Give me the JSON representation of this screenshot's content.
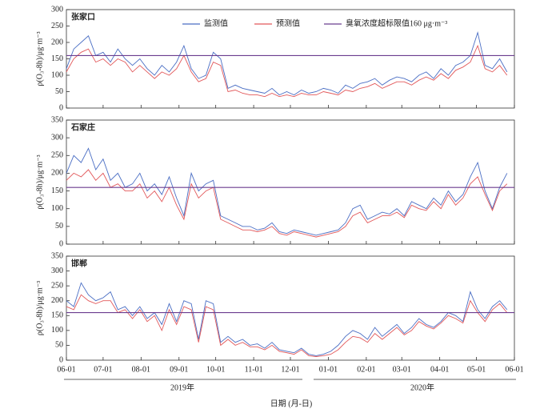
{
  "x_label": "日期 (月-日)",
  "year_labels": [
    "2019年",
    "2020年"
  ],
  "chart_data": [
    {
      "type": "line",
      "title": "张家口",
      "y_label": "ρ(O₃-8h)/μg·m⁻³",
      "ylim": [
        0,
        300
      ],
      "yticks": [
        0,
        50,
        100,
        150,
        200,
        250,
        300
      ],
      "threshold": 160,
      "threshold_name": "臭氧浓度超标限值160 μg·m⁻³",
      "threshold_color": "#6b3d8f",
      "xlim": [
        "2019-06-01",
        "2020-06-01"
      ],
      "x": [
        "2019-06-01",
        "2019-06-07",
        "2019-06-13",
        "2019-06-19",
        "2019-06-25",
        "2019-07-01",
        "2019-07-07",
        "2019-07-13",
        "2019-07-19",
        "2019-07-25",
        "2019-07-31",
        "2019-08-06",
        "2019-08-12",
        "2019-08-18",
        "2019-08-24",
        "2019-08-30",
        "2019-09-05",
        "2019-09-11",
        "2019-09-17",
        "2019-09-23",
        "2019-09-29",
        "2019-10-05",
        "2019-10-11",
        "2019-10-17",
        "2019-10-23",
        "2019-10-29",
        "2019-11-04",
        "2019-11-10",
        "2019-11-16",
        "2019-11-22",
        "2019-11-28",
        "2019-12-04",
        "2019-12-10",
        "2019-12-16",
        "2019-12-22",
        "2019-12-28",
        "2020-01-03",
        "2020-01-09",
        "2020-01-15",
        "2020-01-21",
        "2020-01-27",
        "2020-02-02",
        "2020-02-08",
        "2020-02-14",
        "2020-02-20",
        "2020-02-26",
        "2020-03-03",
        "2020-03-09",
        "2020-03-15",
        "2020-03-21",
        "2020-03-27",
        "2020-04-02",
        "2020-04-08",
        "2020-04-14",
        "2020-04-20",
        "2020-04-26",
        "2020-05-02",
        "2020-05-08",
        "2020-05-14",
        "2020-05-20",
        "2020-05-26"
      ],
      "series": [
        {
          "name": "监测值",
          "color": "#4a6ec4",
          "values": [
            120,
            180,
            200,
            220,
            160,
            170,
            140,
            180,
            150,
            130,
            150,
            120,
            100,
            130,
            110,
            140,
            190,
            120,
            90,
            100,
            170,
            150,
            60,
            70,
            60,
            55,
            50,
            45,
            60,
            40,
            50,
            40,
            55,
            45,
            50,
            60,
            55,
            45,
            70,
            60,
            75,
            80,
            90,
            70,
            85,
            95,
            90,
            80,
            100,
            110,
            90,
            120,
            100,
            130,
            140,
            160,
            230,
            130,
            120,
            150,
            110
          ]
        },
        {
          "name": "预测值",
          "color": "#e2585a",
          "values": [
            110,
            150,
            170,
            180,
            140,
            150,
            130,
            150,
            140,
            110,
            130,
            110,
            90,
            110,
            100,
            120,
            160,
            110,
            80,
            90,
            140,
            130,
            50,
            55,
            45,
            40,
            40,
            35,
            45,
            35,
            40,
            35,
            45,
            40,
            40,
            50,
            45,
            40,
            55,
            50,
            60,
            65,
            75,
            60,
            70,
            80,
            80,
            70,
            85,
            95,
            85,
            105,
            90,
            115,
            125,
            140,
            190,
            120,
            110,
            130,
            100
          ]
        }
      ]
    },
    {
      "type": "line",
      "title": "石家庄",
      "y_label": "ρ(O₃-8h)/μg·m⁻³",
      "ylim": [
        0,
        350
      ],
      "yticks": [
        0,
        50,
        100,
        150,
        200,
        250,
        300,
        350
      ],
      "threshold": 160,
      "threshold_color": "#6b3d8f",
      "xlim": [
        "2019-06-01",
        "2020-06-01"
      ],
      "x": [
        "2019-06-01",
        "2019-06-07",
        "2019-06-13",
        "2019-06-19",
        "2019-06-25",
        "2019-07-01",
        "2019-07-07",
        "2019-07-13",
        "2019-07-19",
        "2019-07-25",
        "2019-07-31",
        "2019-08-06",
        "2019-08-12",
        "2019-08-18",
        "2019-08-24",
        "2019-08-30",
        "2019-09-05",
        "2019-09-11",
        "2019-09-17",
        "2019-09-23",
        "2019-09-29",
        "2019-10-05",
        "2019-10-11",
        "2019-10-17",
        "2019-10-23",
        "2019-10-29",
        "2019-11-04",
        "2019-11-10",
        "2019-11-16",
        "2019-11-22",
        "2019-11-28",
        "2019-12-04",
        "2019-12-10",
        "2019-12-16",
        "2019-12-22",
        "2019-12-28",
        "2020-01-03",
        "2020-01-09",
        "2020-01-15",
        "2020-01-21",
        "2020-01-27",
        "2020-02-02",
        "2020-02-08",
        "2020-02-14",
        "2020-02-20",
        "2020-02-26",
        "2020-03-03",
        "2020-03-09",
        "2020-03-15",
        "2020-03-21",
        "2020-03-27",
        "2020-04-02",
        "2020-04-08",
        "2020-04-14",
        "2020-04-20",
        "2020-04-26",
        "2020-05-02",
        "2020-05-08",
        "2020-05-14",
        "2020-05-20",
        "2020-05-26"
      ],
      "series": [
        {
          "name": "监测值",
          "color": "#4a6ec4",
          "values": [
            200,
            250,
            230,
            270,
            210,
            240,
            180,
            200,
            160,
            170,
            200,
            150,
            170,
            140,
            190,
            130,
            80,
            200,
            150,
            170,
            180,
            80,
            70,
            60,
            50,
            50,
            40,
            45,
            60,
            35,
            30,
            40,
            35,
            30,
            25,
            30,
            35,
            40,
            60,
            100,
            110,
            70,
            80,
            90,
            85,
            100,
            80,
            120,
            110,
            100,
            130,
            110,
            150,
            120,
            140,
            190,
            230,
            150,
            100,
            160,
            200
          ]
        },
        {
          "name": "预测值",
          "color": "#e2585a",
          "values": [
            180,
            200,
            190,
            210,
            180,
            200,
            160,
            170,
            150,
            150,
            170,
            130,
            150,
            120,
            160,
            110,
            70,
            170,
            130,
            150,
            160,
            70,
            60,
            50,
            40,
            40,
            35,
            40,
            50,
            30,
            25,
            35,
            30,
            25,
            20,
            25,
            30,
            35,
            50,
            80,
            90,
            60,
            70,
            80,
            80,
            90,
            75,
            110,
            100,
            95,
            120,
            100,
            140,
            110,
            130,
            170,
            190,
            140,
            95,
            150,
            170
          ]
        }
      ]
    },
    {
      "type": "line",
      "title": "邯郸",
      "y_label": "ρ(O₃-8h)/μg·m⁻³",
      "ylim": [
        0,
        350
      ],
      "yticks": [
        0,
        50,
        100,
        150,
        200,
        250,
        300,
        350
      ],
      "threshold": 160,
      "threshold_color": "#6b3d8f",
      "xlim": [
        "2019-06-01",
        "2020-06-01"
      ],
      "xticks": [
        {
          "value": "2019-06-01",
          "label": "06-01"
        },
        {
          "value": "2019-07-01",
          "label": "07-01"
        },
        {
          "value": "2019-08-01",
          "label": "08-01"
        },
        {
          "value": "2019-09-01",
          "label": "09-01"
        },
        {
          "value": "2019-10-01",
          "label": "10-01"
        },
        {
          "value": "2019-11-01",
          "label": "11-01"
        },
        {
          "value": "2019-12-01",
          "label": "12-01"
        },
        {
          "value": "2020-01-01",
          "label": "01-01"
        },
        {
          "value": "2020-02-01",
          "label": "02-01"
        },
        {
          "value": "2020-03-01",
          "label": "03-01"
        },
        {
          "value": "2020-04-01",
          "label": "04-01"
        },
        {
          "value": "2020-05-01",
          "label": "05-01"
        },
        {
          "value": "2020-06-01",
          "label": "06-01"
        }
      ],
      "x": [
        "2019-06-01",
        "2019-06-07",
        "2019-06-13",
        "2019-06-19",
        "2019-06-25",
        "2019-07-01",
        "2019-07-07",
        "2019-07-13",
        "2019-07-19",
        "2019-07-25",
        "2019-07-31",
        "2019-08-06",
        "2019-08-12",
        "2019-08-18",
        "2019-08-24",
        "2019-08-30",
        "2019-09-05",
        "2019-09-11",
        "2019-09-17",
        "2019-09-23",
        "2019-09-29",
        "2019-10-05",
        "2019-10-11",
        "2019-10-17",
        "2019-10-23",
        "2019-10-29",
        "2019-11-04",
        "2019-11-10",
        "2019-11-16",
        "2019-11-22",
        "2019-11-28",
        "2019-12-04",
        "2019-12-10",
        "2019-12-16",
        "2019-12-22",
        "2019-12-28",
        "2020-01-03",
        "2020-01-09",
        "2020-01-15",
        "2020-01-21",
        "2020-01-27",
        "2020-02-02",
        "2020-02-08",
        "2020-02-14",
        "2020-02-20",
        "2020-02-26",
        "2020-03-03",
        "2020-03-09",
        "2020-03-15",
        "2020-03-21",
        "2020-03-27",
        "2020-04-02",
        "2020-04-08",
        "2020-04-14",
        "2020-04-20",
        "2020-04-26",
        "2020-05-02",
        "2020-05-08",
        "2020-05-14",
        "2020-05-20",
        "2020-05-26"
      ],
      "series": [
        {
          "name": "监测值",
          "color": "#4a6ec4",
          "values": [
            200,
            180,
            260,
            220,
            200,
            210,
            230,
            170,
            180,
            150,
            180,
            140,
            160,
            120,
            190,
            130,
            200,
            190,
            70,
            200,
            190,
            60,
            80,
            60,
            70,
            50,
            55,
            40,
            60,
            35,
            30,
            25,
            40,
            20,
            15,
            20,
            30,
            50,
            80,
            100,
            90,
            70,
            110,
            80,
            100,
            120,
            90,
            110,
            140,
            120,
            110,
            130,
            160,
            150,
            130,
            230,
            170,
            140,
            180,
            200,
            170
          ]
        },
        {
          "name": "预测值",
          "color": "#e2585a",
          "values": [
            180,
            170,
            220,
            200,
            190,
            200,
            200,
            160,
            170,
            140,
            170,
            130,
            150,
            100,
            170,
            120,
            180,
            170,
            60,
            180,
            170,
            50,
            70,
            50,
            60,
            45,
            45,
            35,
            50,
            30,
            25,
            20,
            35,
            15,
            12,
            15,
            20,
            35,
            60,
            80,
            75,
            60,
            90,
            70,
            90,
            110,
            85,
            100,
            130,
            115,
            105,
            125,
            150,
            140,
            125,
            200,
            160,
            130,
            170,
            190,
            160
          ]
        }
      ]
    }
  ]
}
